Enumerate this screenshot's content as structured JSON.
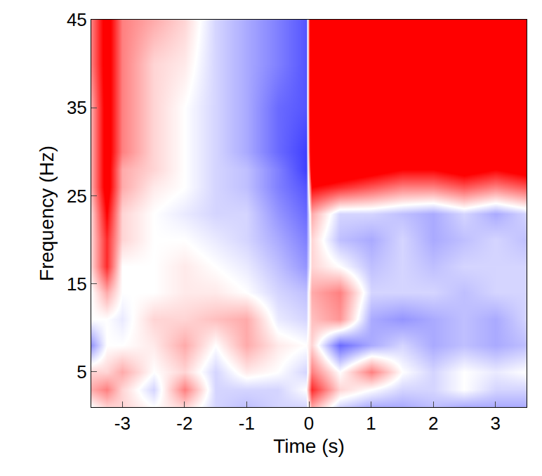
{
  "chart_data": {
    "type": "heatmap",
    "xlabel": "Time (s)",
    "ylabel": "Frequency (Hz)",
    "x": [
      -3.5,
      -3.25,
      -3,
      -2.5,
      -2,
      -1.5,
      -1,
      -0.5,
      -0.05,
      0.05,
      0.5,
      1,
      1.5,
      2,
      2.5,
      3,
      3.5
    ],
    "y": [
      1,
      3,
      5,
      8,
      11,
      14,
      17,
      20,
      23,
      26,
      28,
      30,
      35,
      40,
      45
    ],
    "z": [
      [
        0,
        0.1,
        0.1,
        0,
        0.1,
        -0.1,
        -0.15,
        -0.1,
        -0.1,
        0.2,
        -0.1,
        -0.2,
        -0.2,
        -0.15,
        -0.2,
        -0.2,
        -0.2
      ],
      [
        0.2,
        0.3,
        0.1,
        -0.1,
        0.3,
        -0.1,
        -0.1,
        -0.1,
        0,
        0.5,
        0.1,
        0,
        -0.1,
        -0.1,
        0,
        -0.1,
        -0.1
      ],
      [
        0.1,
        0.1,
        0.2,
        0,
        0.1,
        -0.1,
        0.05,
        0,
        -0.1,
        0.3,
        0,
        0.3,
        0,
        -0.1,
        0,
        -0.05,
        0
      ],
      [
        -0.25,
        0,
        0,
        0.05,
        0.2,
        0,
        0.2,
        0.05,
        0,
        0.1,
        -0.35,
        -0.2,
        -0.1,
        -0.2,
        -0.15,
        -0.2,
        -0.15
      ],
      [
        0,
        0,
        -0.05,
        0.1,
        0.1,
        0.15,
        0.2,
        -0.05,
        -0.1,
        0.15,
        0.25,
        -0.2,
        -0.25,
        -0.2,
        -0.15,
        -0.2,
        -0.1
      ],
      [
        0,
        0.2,
        0,
        0,
        0.05,
        0.05,
        0,
        -0.1,
        -0.15,
        0.2,
        0.3,
        -0.1,
        -0.1,
        -0.1,
        -0.15,
        -0.1,
        -0.1
      ],
      [
        0.1,
        0.5,
        0,
        0,
        0.05,
        0,
        -0.05,
        -0.15,
        -0.25,
        0.1,
        0,
        -0.15,
        -0.1,
        -0.15,
        -0.1,
        -0.1,
        -0.1
      ],
      [
        0.1,
        0.5,
        0.1,
        0,
        0,
        -0.05,
        -0.1,
        -0.2,
        -0.3,
        0.1,
        -0.15,
        -0.2,
        -0.1,
        -0.2,
        -0.15,
        -0.1,
        -0.15
      ],
      [
        0.1,
        0.6,
        0.1,
        0,
        -0.05,
        -0.1,
        -0.1,
        -0.25,
        -0.35,
        0.2,
        -0.1,
        -0.1,
        -0.15,
        -0.2,
        -0.1,
        -0.2,
        -0.1
      ],
      [
        0.2,
        0.7,
        0.2,
        0.05,
        0,
        -0.1,
        -0.15,
        -0.3,
        -0.4,
        0.6,
        0.5,
        0.4,
        0.3,
        0.3,
        0.4,
        0.3,
        0.4
      ],
      [
        0.2,
        0.7,
        0.2,
        0.1,
        0,
        -0.1,
        -0.15,
        -0.3,
        -0.45,
        0.9,
        0.8,
        0.7,
        0.6,
        0.6,
        0.7,
        0.6,
        0.7
      ],
      [
        0.2,
        0.7,
        0.3,
        0.1,
        0,
        -0.1,
        -0.2,
        -0.35,
        -0.45,
        1.1,
        1.1,
        1.0,
        1.0,
        1.0,
        1.0,
        1.0,
        1.0
      ],
      [
        0.2,
        0.7,
        0.3,
        0.1,
        0,
        -0.1,
        -0.2,
        -0.35,
        -0.4,
        1.2,
        1.2,
        1.2,
        1.2,
        1.2,
        1.2,
        1.2,
        1.2
      ],
      [
        0.3,
        0.7,
        0.3,
        0.1,
        0.05,
        -0.1,
        -0.2,
        -0.3,
        -0.4,
        1.2,
        1.2,
        1.2,
        1.2,
        1.2,
        1.2,
        1.2,
        1.2
      ],
      [
        0.3,
        0.7,
        0.3,
        0.2,
        0.1,
        -0.1,
        -0.2,
        -0.3,
        -0.4,
        1.2,
        1.2,
        1.2,
        1.2,
        1.2,
        1.2,
        1.2,
        1.2
      ]
    ],
    "zlim": [
      -0.6,
      0.6
    ],
    "xlim": [
      -3.5,
      3.5
    ],
    "ylim": [
      1,
      45
    ],
    "xticks": [
      -3,
      -2,
      -1,
      0,
      1,
      2,
      3
    ],
    "yticks": [
      5,
      15,
      25,
      35,
      45
    ],
    "grid": false
  }
}
